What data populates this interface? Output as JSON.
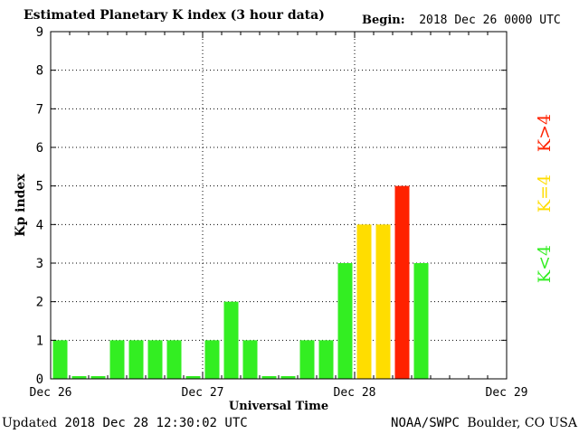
{
  "header": {
    "title": "Estimated Planetary K index (3 hour data)",
    "begin_label": "Begin:",
    "begin_value": "2018 Dec 26 0000 UTC"
  },
  "footer": {
    "updated_label": "Updated",
    "updated_value": "2018 Dec 28 12:30:02 UTC",
    "source_org": "NOAA/SWPC",
    "source_location": "Boulder, CO USA"
  },
  "legend": {
    "below": "K<4",
    "equal": "K=4",
    "above": "K>4"
  },
  "colors": {
    "below": "#33ee22",
    "equal": "#ffdd00",
    "above": "#ff2200"
  },
  "chart_data": {
    "type": "bar",
    "title": "Estimated Planetary K index (3 hour data)",
    "xlabel": "Universal Time",
    "ylabel": "Kp index",
    "ylim": [
      0,
      9
    ],
    "yticks": [
      0,
      1,
      2,
      3,
      4,
      5,
      6,
      7,
      8,
      9
    ],
    "xticks": [
      "Dec 26",
      "Dec 27",
      "Dec 28",
      "Dec 29"
    ],
    "bins_per_day": 8,
    "days": 3,
    "grid": true,
    "values": [
      1,
      0,
      0,
      1,
      1,
      1,
      1,
      0,
      1,
      2,
      1,
      0,
      0,
      1,
      1,
      3,
      4,
      4,
      5,
      3
    ]
  }
}
